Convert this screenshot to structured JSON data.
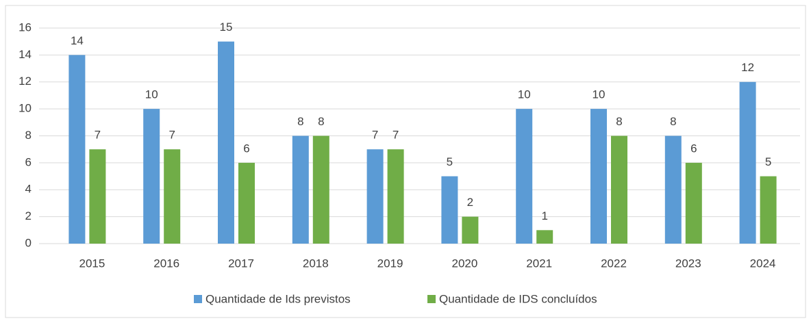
{
  "chart_data": {
    "type": "bar",
    "categories": [
      "2015",
      "2016",
      "2017",
      "2018",
      "2019",
      "2020",
      "2021",
      "2022",
      "2023",
      "2024"
    ],
    "series": [
      {
        "name": "Quantidade de Ids previstos",
        "color": "#5b9bd5",
        "values": [
          14,
          10,
          15,
          8,
          7,
          5,
          10,
          10,
          8,
          12
        ]
      },
      {
        "name": "Quantidade de IDS concluídos",
        "color": "#70ad47",
        "values": [
          7,
          7,
          6,
          8,
          7,
          2,
          1,
          8,
          6,
          5
        ]
      }
    ],
    "ylim": [
      0,
      16
    ],
    "yticks": [
      0,
      2,
      4,
      6,
      8,
      10,
      12,
      14,
      16
    ],
    "grid": true,
    "legend": "bottom"
  }
}
